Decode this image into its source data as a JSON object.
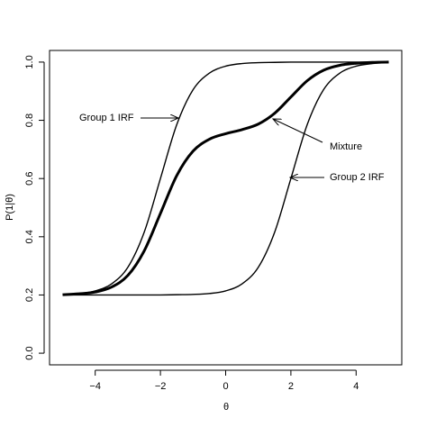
{
  "chart_data": {
    "type": "line",
    "xlabel": "θ",
    "ylabel": "P(1|θ)",
    "x": [
      -5,
      -4.5,
      -4,
      -3.5,
      -3,
      -2.5,
      -2,
      -1.5,
      -1,
      -0.5,
      0,
      0.5,
      1,
      1.5,
      2,
      2.5,
      3,
      3.5,
      4,
      4.5,
      5
    ],
    "series": [
      {
        "name": "Group 1 IRF",
        "color": "#000000",
        "linewidth": 1.4,
        "values": [
          0.202,
          0.205,
          0.214,
          0.238,
          0.295,
          0.415,
          0.6,
          0.785,
          0.905,
          0.962,
          0.986,
          0.995,
          0.998,
          0.999,
          1.0,
          1.0,
          1.0,
          1.0,
          1.0,
          1.0,
          1.0
        ]
      },
      {
        "name": "Mixture",
        "color": "#000000",
        "linewidth": 3,
        "values": [
          0.201,
          0.204,
          0.21,
          0.227,
          0.267,
          0.351,
          0.48,
          0.61,
          0.694,
          0.735,
          0.754,
          0.768,
          0.787,
          0.824,
          0.88,
          0.936,
          0.972,
          0.989,
          0.996,
          0.999,
          1.0
        ]
      },
      {
        "name": "Group 2 IRF",
        "color": "#000000",
        "linewidth": 1.4,
        "values": [
          0.2,
          0.2,
          0.2,
          0.2,
          0.2,
          0.2,
          0.2,
          0.201,
          0.202,
          0.205,
          0.214,
          0.238,
          0.295,
          0.415,
          0.6,
          0.785,
          0.905,
          0.962,
          0.986,
          0.995,
          0.998
        ]
      }
    ],
    "xlim": [
      -5.4,
      5.4
    ],
    "ylim": [
      -0.04,
      1.04
    ],
    "xticks": [
      {
        "value": -4,
        "label": "−4"
      },
      {
        "value": -2,
        "label": "−2"
      },
      0,
      2,
      4
    ],
    "yticks": [
      {
        "value": 0,
        "label": "0.0"
      },
      0.2,
      0.4,
      0.6,
      0.8,
      {
        "value": 1,
        "label": "1.0"
      }
    ],
    "grid": false
  }
}
